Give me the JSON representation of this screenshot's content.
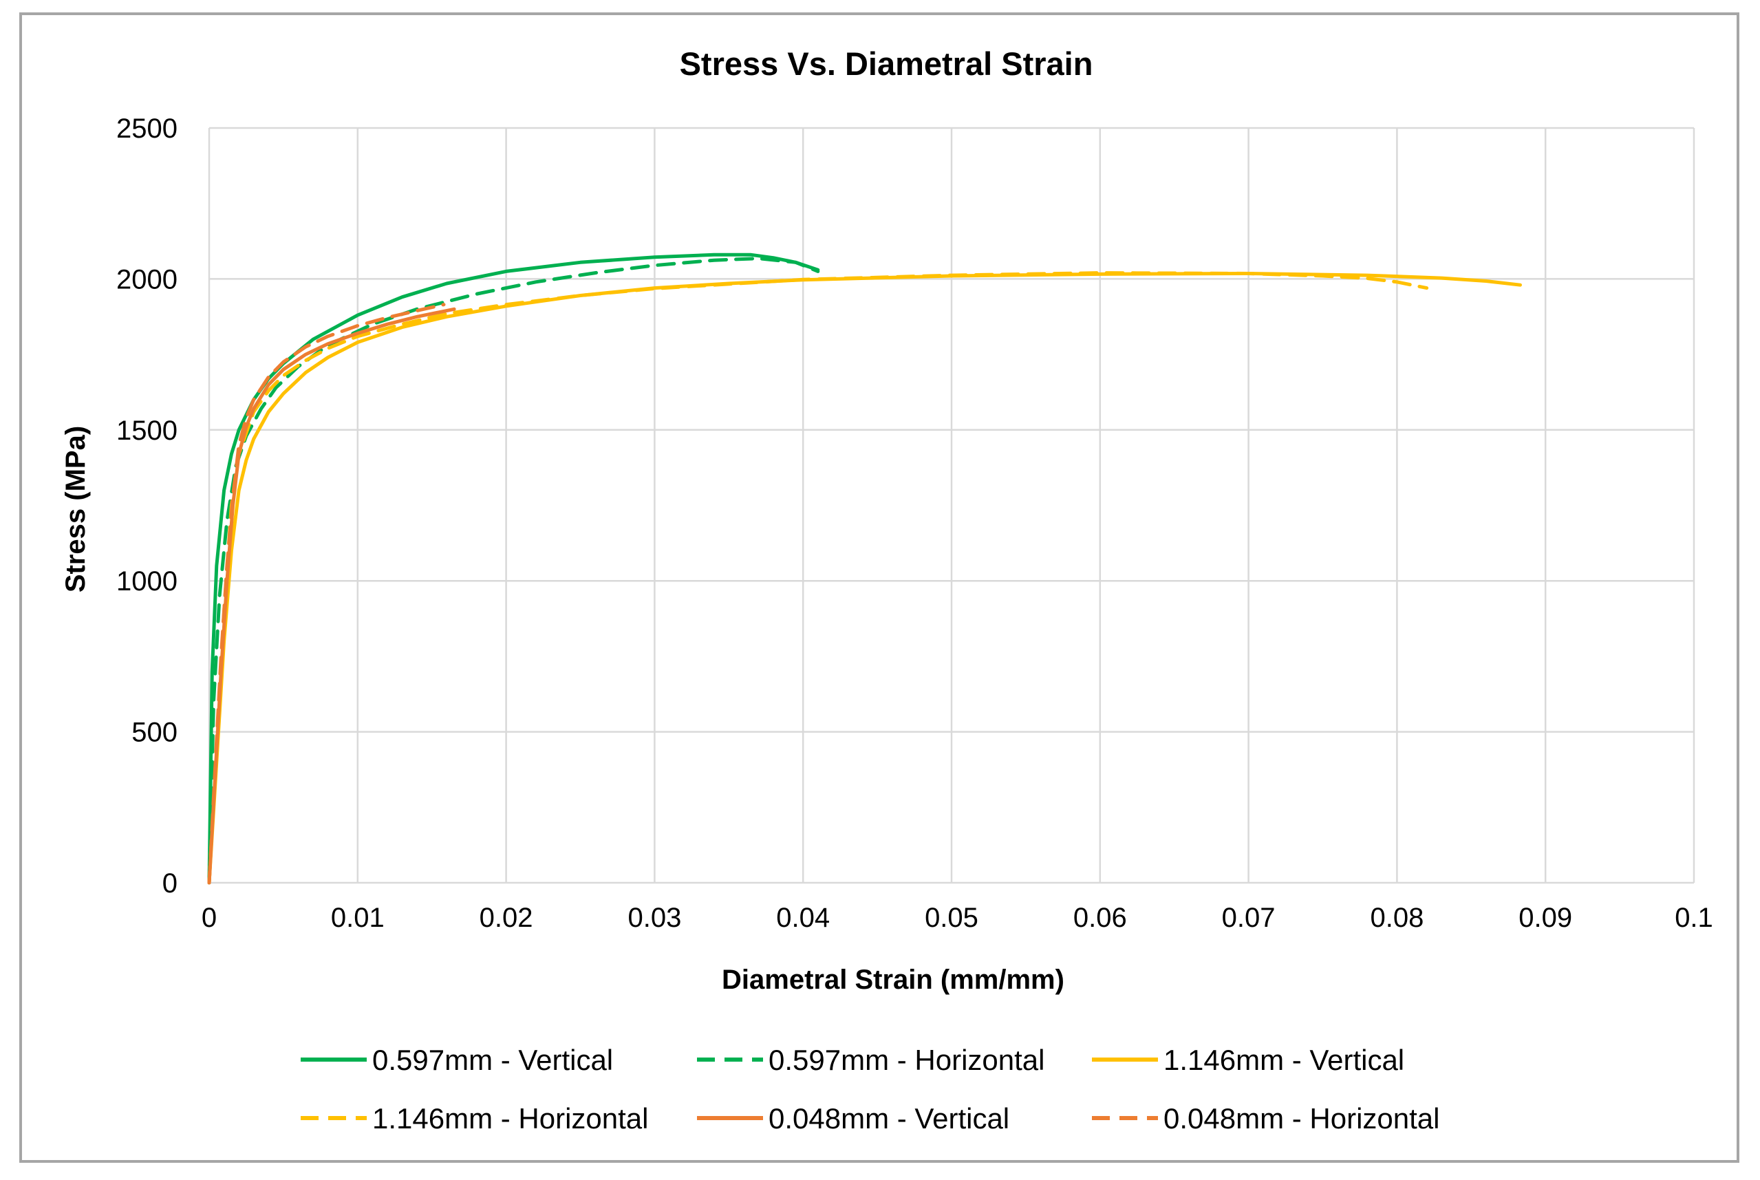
{
  "chart_data": {
    "type": "line",
    "title": "Stress Vs. Diametral Strain",
    "xlabel": "Diametral Strain (mm/mm)",
    "ylabel": "Stress (MPa)",
    "xlim": [
      0,
      0.1
    ],
    "ylim": [
      0,
      2500
    ],
    "xticks": [
      "0",
      "0.01",
      "0.02",
      "0.03",
      "0.04",
      "0.05",
      "0.06",
      "0.07",
      "0.08",
      "0.09",
      "0.1"
    ],
    "yticks": [
      "0",
      "500",
      "1000",
      "1500",
      "2000",
      "2500"
    ],
    "grid": true,
    "legend_position": "bottom",
    "series": [
      {
        "name": "0.597mm - Vertical",
        "color": "#00b050",
        "dash": "solid",
        "x": [
          0,
          0.0002,
          0.0005,
          0.001,
          0.0015,
          0.002,
          0.003,
          0.004,
          0.005,
          0.007,
          0.01,
          0.013,
          0.016,
          0.02,
          0.025,
          0.03,
          0.034,
          0.0365,
          0.038,
          0.0395,
          0.041
        ],
        "y": [
          0,
          700,
          1050,
          1300,
          1420,
          1500,
          1600,
          1670,
          1720,
          1800,
          1880,
          1940,
          1985,
          2025,
          2055,
          2072,
          2080,
          2080,
          2070,
          2055,
          2030
        ]
      },
      {
        "name": "0.597mm - Horizontal",
        "color": "#00b050",
        "dash": "dashed",
        "x": [
          0,
          0.0003,
          0.0007,
          0.0012,
          0.0018,
          0.0025,
          0.0035,
          0.0045,
          0.006,
          0.008,
          0.011,
          0.014,
          0.018,
          0.022,
          0.026,
          0.03,
          0.034,
          0.037,
          0.0395,
          0.041
        ],
        "y": [
          0,
          600,
          950,
          1200,
          1380,
          1480,
          1570,
          1640,
          1710,
          1780,
          1850,
          1900,
          1950,
          1990,
          2020,
          2045,
          2062,
          2068,
          2055,
          2025
        ]
      },
      {
        "name": "1.146mm - Vertical",
        "color": "#ffc000",
        "dash": "solid",
        "x": [
          0,
          0.0005,
          0.001,
          0.0015,
          0.002,
          0.0025,
          0.003,
          0.004,
          0.005,
          0.0065,
          0.008,
          0.01,
          0.013,
          0.016,
          0.02,
          0.025,
          0.03,
          0.035,
          0.04,
          0.05,
          0.06,
          0.07,
          0.078,
          0.083,
          0.086,
          0.0883
        ],
        "y": [
          0,
          400,
          800,
          1100,
          1300,
          1400,
          1470,
          1560,
          1620,
          1690,
          1740,
          1790,
          1840,
          1875,
          1910,
          1945,
          1970,
          1985,
          1997,
          2010,
          2016,
          2018,
          2012,
          2003,
          1993,
          1980
        ]
      },
      {
        "name": "1.146mm - Horizontal",
        "color": "#ffc000",
        "dash": "dashed",
        "x": [
          0,
          0.0005,
          0.001,
          0.0015,
          0.002,
          0.003,
          0.004,
          0.005,
          0.0065,
          0.008,
          0.01,
          0.013,
          0.016,
          0.02,
          0.025,
          0.03,
          0.04,
          0.05,
          0.06,
          0.07,
          0.075,
          0.078,
          0.08,
          0.082
        ],
        "y": [
          0,
          450,
          900,
          1250,
          1420,
          1560,
          1630,
          1680,
          1730,
          1770,
          1810,
          1850,
          1885,
          1915,
          1945,
          1968,
          1998,
          2012,
          2020,
          2018,
          2010,
          2002,
          1990,
          1970
        ]
      },
      {
        "name": "0.048mm - Vertical",
        "color": "#ed7d31",
        "dash": "solid",
        "x": [
          0,
          0.0004,
          0.0008,
          0.0012,
          0.0016,
          0.002,
          0.0025,
          0.003,
          0.004,
          0.005,
          0.0065,
          0.008,
          0.01,
          0.012,
          0.014,
          0.0165
        ],
        "y": [
          0,
          350,
          700,
          1000,
          1250,
          1420,
          1510,
          1570,
          1650,
          1700,
          1750,
          1785,
          1820,
          1850,
          1875,
          1900
        ]
      },
      {
        "name": "0.048mm - Horizontal",
        "color": "#ed7d31",
        "dash": "dashed",
        "x": [
          0,
          0.0004,
          0.0008,
          0.0012,
          0.0016,
          0.002,
          0.0025,
          0.003,
          0.004,
          0.005,
          0.0065,
          0.008,
          0.01,
          0.012,
          0.014,
          0.0158
        ],
        "y": [
          0,
          380,
          750,
          1050,
          1280,
          1450,
          1540,
          1600,
          1675,
          1725,
          1775,
          1810,
          1845,
          1872,
          1895,
          1915
        ]
      }
    ]
  }
}
